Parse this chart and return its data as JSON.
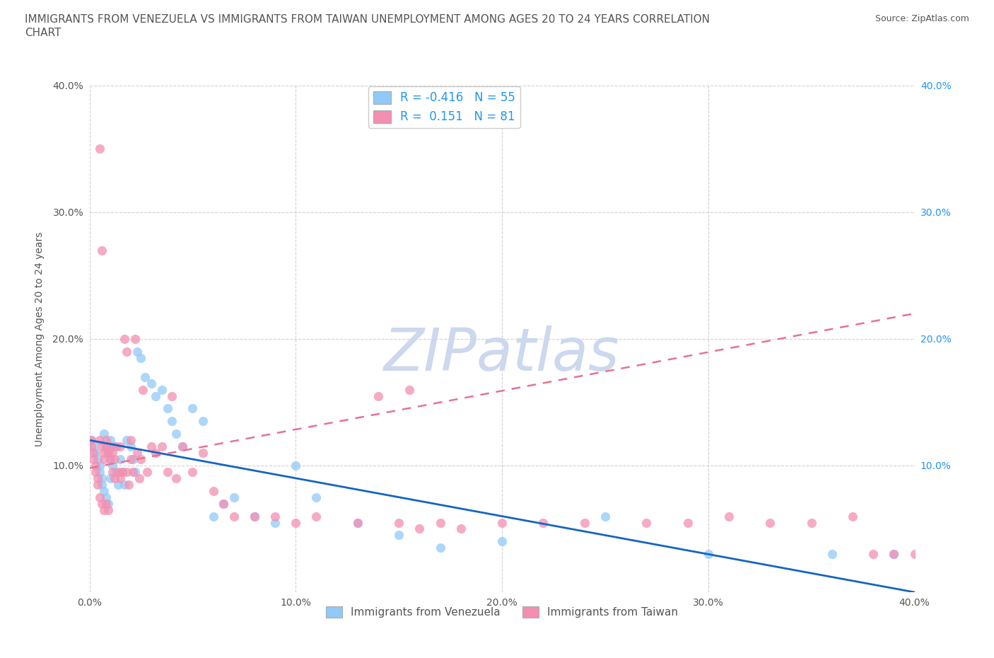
{
  "title_line1": "IMMIGRANTS FROM VENEZUELA VS IMMIGRANTS FROM TAIWAN UNEMPLOYMENT AMONG AGES 20 TO 24 YEARS CORRELATION",
  "title_line2": "CHART",
  "source": "Source: ZipAtlas.com",
  "ylabel": "Unemployment Among Ages 20 to 24 years",
  "xlim": [
    0.0,
    0.4
  ],
  "ylim": [
    0.0,
    0.4
  ],
  "xticks": [
    0.0,
    0.1,
    0.2,
    0.3,
    0.4
  ],
  "yticks": [
    0.0,
    0.1,
    0.2,
    0.3,
    0.4
  ],
  "xtick_labels": [
    "0.0%",
    "10.0%",
    "20.0%",
    "30.0%",
    "40.0%"
  ],
  "left_ytick_labels": [
    "",
    "10.0%",
    "20.0%",
    "30.0%",
    "40.0%"
  ],
  "right_ytick_labels": [
    "10.0%",
    "20.0%",
    "30.0%",
    "40.0%"
  ],
  "right_yticks": [
    0.1,
    0.2,
    0.3,
    0.4
  ],
  "watermark": "ZIPatlas",
  "color_venezuela": "#90caf9",
  "color_taiwan": "#f48fb1",
  "trendline_venezuela_color": "#1565c0",
  "trendline_taiwan_color": "#e57393",
  "grid_color": "#cccccc",
  "title_color": "#555555",
  "title_fontsize": 11,
  "source_fontsize": 9,
  "watermark_color": "#ccd8ee",
  "watermark_fontsize": 60,
  "legend_label_ven": "Immigrants from Venezuela",
  "legend_label_tai": "Immigrants from Taiwan",
  "ven_trend": [
    -0.3,
    0.12
  ],
  "tai_trend": [
    0.3,
    0.1
  ],
  "venezuela_x": [
    0.001,
    0.002,
    0.003,
    0.004,
    0.005,
    0.005,
    0.006,
    0.006,
    0.007,
    0.007,
    0.008,
    0.008,
    0.009,
    0.009,
    0.01,
    0.01,
    0.01,
    0.011,
    0.012,
    0.013,
    0.014,
    0.015,
    0.016,
    0.017,
    0.018,
    0.02,
    0.021,
    0.022,
    0.023,
    0.025,
    0.027,
    0.03,
    0.032,
    0.035,
    0.038,
    0.04,
    0.042,
    0.045,
    0.05,
    0.055,
    0.06,
    0.065,
    0.07,
    0.08,
    0.09,
    0.1,
    0.11,
    0.13,
    0.15,
    0.17,
    0.2,
    0.25,
    0.3,
    0.36,
    0.39
  ],
  "venezuela_y": [
    0.12,
    0.115,
    0.11,
    0.105,
    0.1,
    0.095,
    0.09,
    0.085,
    0.125,
    0.08,
    0.115,
    0.075,
    0.11,
    0.07,
    0.12,
    0.105,
    0.09,
    0.1,
    0.115,
    0.095,
    0.085,
    0.105,
    0.095,
    0.085,
    0.12,
    0.115,
    0.105,
    0.095,
    0.19,
    0.185,
    0.17,
    0.165,
    0.155,
    0.16,
    0.145,
    0.135,
    0.125,
    0.115,
    0.145,
    0.135,
    0.06,
    0.07,
    0.075,
    0.06,
    0.055,
    0.1,
    0.075,
    0.055,
    0.045,
    0.035,
    0.04,
    0.06,
    0.03,
    0.03,
    0.03
  ],
  "taiwan_x": [
    0.001,
    0.001,
    0.002,
    0.002,
    0.003,
    0.003,
    0.004,
    0.004,
    0.005,
    0.005,
    0.005,
    0.006,
    0.006,
    0.006,
    0.007,
    0.007,
    0.007,
    0.008,
    0.008,
    0.008,
    0.009,
    0.009,
    0.01,
    0.01,
    0.011,
    0.011,
    0.012,
    0.012,
    0.013,
    0.014,
    0.015,
    0.015,
    0.016,
    0.017,
    0.018,
    0.018,
    0.019,
    0.02,
    0.02,
    0.021,
    0.022,
    0.023,
    0.024,
    0.025,
    0.026,
    0.028,
    0.03,
    0.032,
    0.035,
    0.038,
    0.04,
    0.042,
    0.045,
    0.05,
    0.055,
    0.06,
    0.065,
    0.07,
    0.08,
    0.09,
    0.1,
    0.11,
    0.13,
    0.14,
    0.15,
    0.155,
    0.16,
    0.17,
    0.18,
    0.2,
    0.22,
    0.24,
    0.27,
    0.29,
    0.31,
    0.33,
    0.35,
    0.37,
    0.38,
    0.39,
    0.4
  ],
  "taiwan_y": [
    0.12,
    0.115,
    0.11,
    0.105,
    0.1,
    0.095,
    0.09,
    0.085,
    0.12,
    0.075,
    0.35,
    0.07,
    0.115,
    0.27,
    0.11,
    0.105,
    0.065,
    0.12,
    0.115,
    0.07,
    0.11,
    0.065,
    0.115,
    0.105,
    0.11,
    0.095,
    0.105,
    0.09,
    0.115,
    0.095,
    0.115,
    0.09,
    0.095,
    0.2,
    0.095,
    0.19,
    0.085,
    0.12,
    0.105,
    0.095,
    0.2,
    0.11,
    0.09,
    0.105,
    0.16,
    0.095,
    0.115,
    0.11,
    0.115,
    0.095,
    0.155,
    0.09,
    0.115,
    0.095,
    0.11,
    0.08,
    0.07,
    0.06,
    0.06,
    0.06,
    0.055,
    0.06,
    0.055,
    0.155,
    0.055,
    0.16,
    0.05,
    0.055,
    0.05,
    0.055,
    0.055,
    0.055,
    0.055,
    0.055,
    0.06,
    0.055,
    0.055,
    0.06,
    0.03,
    0.03,
    0.03
  ]
}
